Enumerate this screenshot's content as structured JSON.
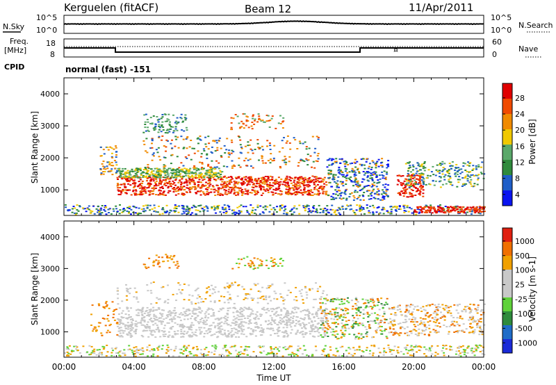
{
  "header": {
    "station": "Kerguelen (fitACF)",
    "beam": "Beam 12",
    "date": "11/Apr/2011"
  },
  "noise_panel": {
    "left_label": "N.Sky",
    "right_label": "N.Search",
    "ticks": [
      "10^5",
      "10^0"
    ]
  },
  "freq_panel": {
    "left_label_1": "Freq.",
    "left_label_2": "[MHz]",
    "left_ticks": [
      "18",
      "8"
    ],
    "right_ticks": [
      "60",
      "0"
    ],
    "right_label": "Nave",
    "cpid_label": "CPID",
    "cpid_value": "normal (fast) -151"
  },
  "colors": {
    "power": [
      "#0a14f0",
      "#1f5ec8",
      "#2f8a3c",
      "#5aa86a",
      "#f0c800",
      "#f08a00",
      "#f04a00",
      "#e00000"
    ],
    "velocity": [
      "#1a2ad8",
      "#1f6cc8",
      "#2e8a3c",
      "#5fd23a",
      "#c8c8c8",
      "#c8c8c8",
      "#f0a000",
      "#f07000",
      "#e02010"
    ]
  },
  "chart_data": [
    {
      "type": "heatmap",
      "title": "",
      "xlabel": "",
      "ylabel": "Slant Range [km]",
      "xlim": [
        "00:00",
        "00:00"
      ],
      "ylim": [
        200,
        4500
      ],
      "y_ticks": [
        "4000",
        "3000",
        "2000",
        "1000"
      ],
      "colorbar": {
        "label": "Power [dB]",
        "ticks": [
          "28",
          "24",
          "20",
          "16",
          "12",
          "8",
          "4"
        ],
        "range": [
          0,
          30
        ]
      }
    },
    {
      "type": "heatmap",
      "title": "",
      "xlabel": "Time UT",
      "ylabel": "Slant Range [km]",
      "x_ticks": [
        "00:00",
        "04:00",
        "08:00",
        "12:00",
        "16:00",
        "20:00",
        "00:00"
      ],
      "ylim": [
        200,
        4500
      ],
      "y_ticks": [
        "4000",
        "3000",
        "2000",
        "1000"
      ],
      "colorbar": {
        "label": "Velocity [m s-1]",
        "ticks": [
          "1000",
          "500",
          "100",
          "25",
          "-25",
          "-100",
          "-500",
          "-1000"
        ],
        "range": [
          -1200,
          1200
        ]
      }
    }
  ]
}
